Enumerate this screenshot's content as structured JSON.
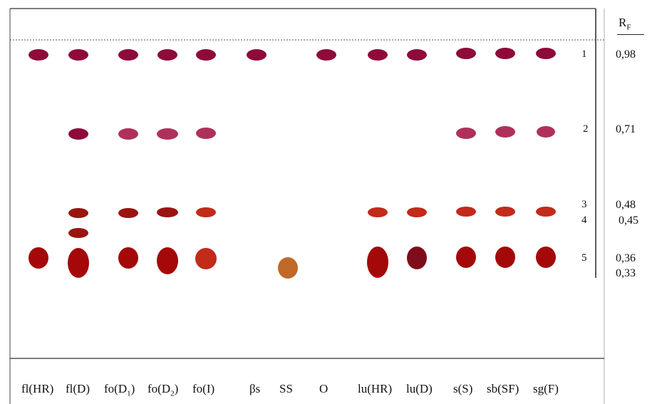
{
  "rf_header": {
    "main": "R",
    "sub": "F"
  },
  "lanes": [
    {
      "label": "fl(HR)"
    },
    {
      "label": "fl(D)"
    },
    {
      "label": "fo(D",
      "sub": "1",
      "suffix": ")"
    },
    {
      "label": "fo(D",
      "sub": "2",
      "suffix": ")"
    },
    {
      "label": "fo(I)"
    },
    {
      "label": "βs"
    },
    {
      "label": "SS"
    },
    {
      "label": "O"
    },
    {
      "label": "lu(HR)"
    },
    {
      "label": "lu(D)"
    },
    {
      "label": "s(S)"
    },
    {
      "label": "sb(SF)"
    },
    {
      "label": "sg(F)"
    }
  ],
  "spot_numbers": [
    "1",
    "2",
    "3",
    "4",
    "5"
  ],
  "rf_values": [
    "0,98",
    "0,71",
    "0,48",
    "0,45",
    "0,36",
    "0,33"
  ],
  "spot_colors": {
    "plum": "#8e0a3a",
    "pink": "#b0305c",
    "darkred": "#9a1410",
    "red": "#c22a1a",
    "crimson": "#a50808",
    "orange": "#c06828",
    "maroon": "#7e0c1a"
  }
}
